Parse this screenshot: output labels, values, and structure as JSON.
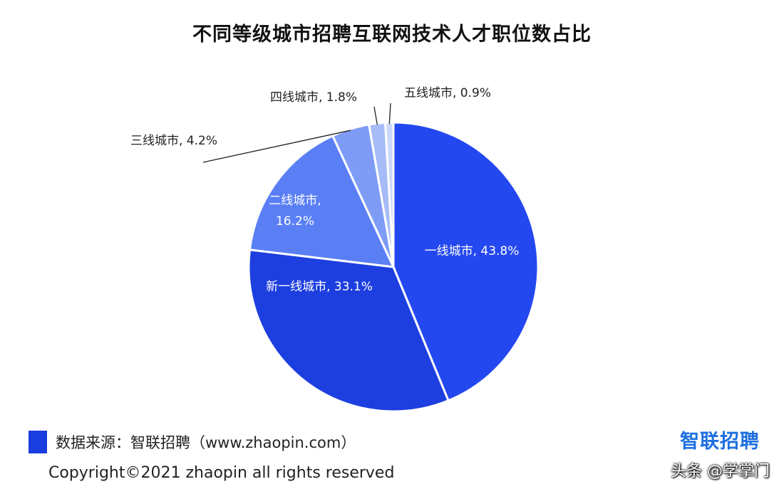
{
  "chart_data": {
    "type": "pie",
    "title": "不同等级城市招聘互联网技术人才职位数占比",
    "slices": [
      {
        "label": "一线城市",
        "value": 43.8,
        "value_label": "43.8%",
        "color": "#2448f0",
        "label_position": "inside"
      },
      {
        "label": "新一线城市",
        "value": 33.1,
        "value_label": "33.1%",
        "color": "#1d3fe0",
        "label_position": "inside"
      },
      {
        "label": "二线城市",
        "value": 16.2,
        "value_label": "16.2%",
        "color": "#5a7ff5",
        "label_position": "inside"
      },
      {
        "label": "三线城市",
        "value": 4.2,
        "value_label": "4.2%",
        "color": "#7e9cf5",
        "label_position": "outside"
      },
      {
        "label": "四线城市",
        "value": 1.8,
        "value_label": "1.8%",
        "color": "#a6bcf8",
        "label_position": "outside"
      },
      {
        "label": "五线城市",
        "value": 0.9,
        "value_label": "0.9%",
        "color": "#cbd8fb",
        "label_position": "outside"
      }
    ],
    "legend": {
      "swatch_color": "#1a3de0",
      "text": "数据来源：智联招聘（www.zhaopin.com）"
    }
  },
  "brand": "智联招聘",
  "copyright": "Copyright©2021 zhaopin all rights reserved",
  "watermark": "头条 @学掌门"
}
